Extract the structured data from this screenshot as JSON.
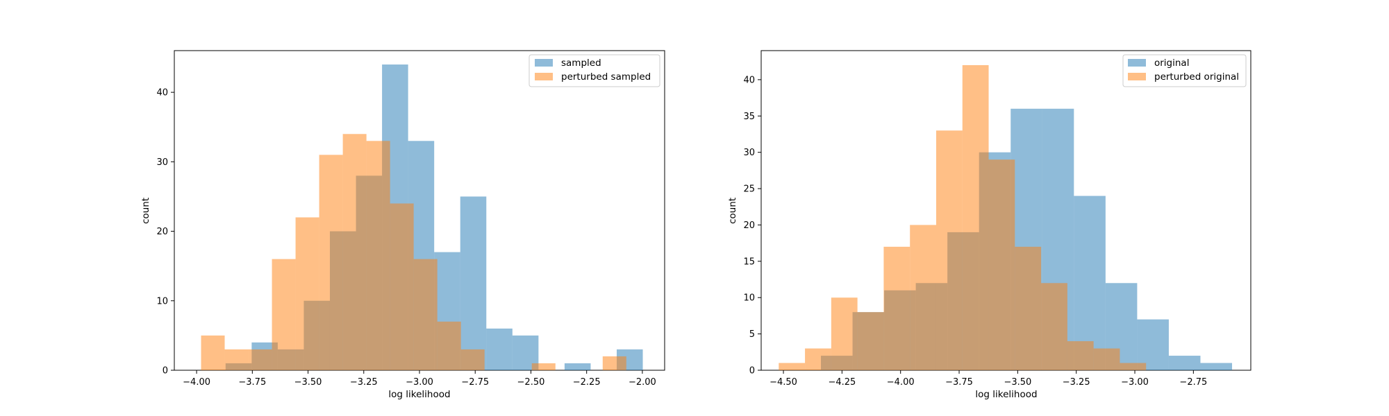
{
  "colors": {
    "series_a": "#1f77b4",
    "series_b": "#ff7f0e",
    "bar_alpha": 0.5
  },
  "chart_data": [
    {
      "type": "bar",
      "subtype": "histogram",
      "xlabel": "log likelihood",
      "ylabel": "count",
      "xlim": [
        -4.1,
        -1.9
      ],
      "ylim": [
        0,
        46
      ],
      "xticks": [
        -4.0,
        -3.75,
        -3.5,
        -3.25,
        -3.0,
        -2.75,
        -2.5,
        -2.25,
        -2.0
      ],
      "xtick_labels": [
        "−4.00",
        "−3.75",
        "−3.50",
        "−3.25",
        "−3.00",
        "−2.75",
        "−2.50",
        "−2.25",
        "−2.00"
      ],
      "yticks": [
        0,
        10,
        20,
        30,
        40
      ],
      "ytick_labels": [
        "0",
        "10",
        "20",
        "30",
        "40"
      ],
      "legend_position": "top-right",
      "series": [
        {
          "name": "sampled",
          "color_key": "series_a",
          "bin_edges": [
            -3.87,
            -3.753,
            -3.636,
            -3.519,
            -3.402,
            -3.285,
            -3.168,
            -3.051,
            -2.934,
            -2.817,
            -2.7,
            -2.583,
            -2.466,
            -2.349,
            -2.232,
            -2.115,
            -1.998
          ],
          "counts": [
            1,
            4,
            3,
            10,
            20,
            28,
            44,
            33,
            17,
            25,
            6,
            5,
            0,
            1,
            0,
            3
          ]
        },
        {
          "name": "perturbed sampled",
          "color_key": "series_b",
          "bin_edges": [
            -3.98,
            -3.874,
            -3.768,
            -3.662,
            -3.556,
            -3.45,
            -3.344,
            -3.238,
            -3.132,
            -3.026,
            -2.92,
            -2.814,
            -2.708,
            -2.602,
            -2.496,
            -2.39,
            -2.284,
            -2.178,
            -2.072
          ],
          "counts": [
            5,
            3,
            3,
            16,
            22,
            31,
            34,
            33,
            24,
            16,
            7,
            3,
            0,
            0,
            1,
            0,
            0,
            2
          ]
        }
      ]
    },
    {
      "type": "bar",
      "subtype": "histogram",
      "xlabel": "log likelihood",
      "ylabel": "count",
      "xlim": [
        -4.595,
        -2.505
      ],
      "ylim": [
        0,
        44
      ],
      "xticks": [
        -4.5,
        -4.25,
        -4.0,
        -3.75,
        -3.5,
        -3.25,
        -3.0,
        -2.75
      ],
      "xtick_labels": [
        "−4.50",
        "−4.25",
        "−4.00",
        "−3.75",
        "−3.50",
        "−3.25",
        "−3.00",
        "−2.75"
      ],
      "yticks": [
        0,
        5,
        10,
        15,
        20,
        25,
        30,
        35,
        40
      ],
      "ytick_labels": [
        "0",
        "5",
        "10",
        "15",
        "20",
        "25",
        "30",
        "35",
        "40"
      ],
      "legend_position": "top-right",
      "series": [
        {
          "name": "original",
          "color_key": "series_a",
          "bin_edges": [
            -4.34,
            -4.205,
            -4.07,
            -3.935,
            -3.8,
            -3.665,
            -3.53,
            -3.395,
            -3.26,
            -3.125,
            -2.99,
            -2.855,
            -2.72,
            -2.585
          ],
          "counts": [
            2,
            8,
            11,
            12,
            19,
            30,
            36,
            36,
            24,
            12,
            7,
            2,
            1
          ]
        },
        {
          "name": "perturbed original",
          "color_key": "series_b",
          "bin_edges": [
            -4.52,
            -4.408,
            -4.296,
            -4.184,
            -4.072,
            -3.96,
            -3.848,
            -3.736,
            -3.624,
            -3.512,
            -3.4,
            -3.288,
            -3.176,
            -3.064,
            -2.952,
            -2.84
          ],
          "counts": [
            1,
            3,
            10,
            8,
            17,
            20,
            33,
            42,
            29,
            17,
            12,
            4,
            3,
            1,
            0
          ]
        }
      ]
    }
  ]
}
